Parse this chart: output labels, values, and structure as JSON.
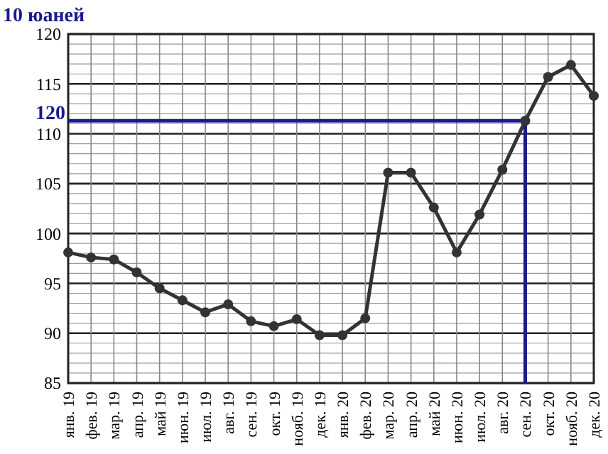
{
  "chart_data": {
    "type": "line",
    "ylabel": "10 юаней",
    "categories": [
      "янв. 19",
      "фев. 19",
      "мар. 19",
      "апр. 19",
      "май 19",
      "июн. 19",
      "июл. 19",
      "авг. 19",
      "сен. 19",
      "окт. 19",
      "нояб. 19",
      "дек. 19",
      "янв. 20",
      "фев. 20",
      "мар. 20",
      "апр. 20",
      "май 20",
      "июн. 20",
      "июл. 20",
      "авг. 20",
      "сен. 20",
      "окт. 20",
      "нояб. 20",
      "дек. 20"
    ],
    "series": [
      {
        "color": "#333333",
        "values": [
          98.1,
          97.6,
          97.4,
          96.1,
          94.5,
          93.3,
          92.1,
          92.9,
          91.2,
          90.7,
          91.4,
          89.8,
          89.8,
          91.5,
          106.1,
          106.1,
          102.6,
          98.1,
          101.9,
          106.4,
          111.3,
          115.7,
          116.9,
          113.8
        ]
      }
    ],
    "ylim": [
      85,
      120
    ],
    "yticks": [
      85,
      {
        "value": 86,
        "label": null
      },
      {
        "value": 87,
        "label": null
      },
      {
        "value": 88,
        "label": null
      },
      {
        "value": 89,
        "label": null
      },
      90,
      {
        "value": 91,
        "label": null
      },
      {
        "value": 92,
        "label": null
      },
      {
        "value": 93,
        "label": null
      },
      {
        "value": 94,
        "label": null
      },
      95,
      {
        "value": 96,
        "label": null
      },
      {
        "value": 97,
        "label": null
      },
      {
        "value": 98,
        "label": null
      },
      {
        "value": 99,
        "label": null
      },
      100,
      {
        "value": 101,
        "label": null
      },
      {
        "value": 102,
        "label": null
      },
      {
        "value": 103,
        "label": null
      },
      {
        "value": 104,
        "label": null
      },
      105,
      {
        "value": 106,
        "label": null
      },
      {
        "value": 107,
        "label": null
      },
      {
        "value": 108,
        "label": null
      },
      {
        "value": 109,
        "label": null
      },
      110,
      {
        "value": 111,
        "label": null
      },
      {
        "value": 112,
        "label": null
      },
      {
        "value": 113,
        "label": null
      },
      {
        "value": 114,
        "label": null
      },
      115,
      {
        "value": 116,
        "label": null
      },
      {
        "value": 117,
        "label": null
      },
      {
        "value": 118,
        "label": null
      },
      {
        "value": 119,
        "label": null
      },
      120
    ],
    "grid": true,
    "marker": "circle",
    "line_style": "solid",
    "annotations": [
      "120"
    ],
    "ref_lines": [
      {
        "axis": "y",
        "value": 111.3,
        "color": "#1a1a8c"
      },
      {
        "axis": "x",
        "value": "сен. 20",
        "color": "#1a1a8c"
      }
    ]
  }
}
